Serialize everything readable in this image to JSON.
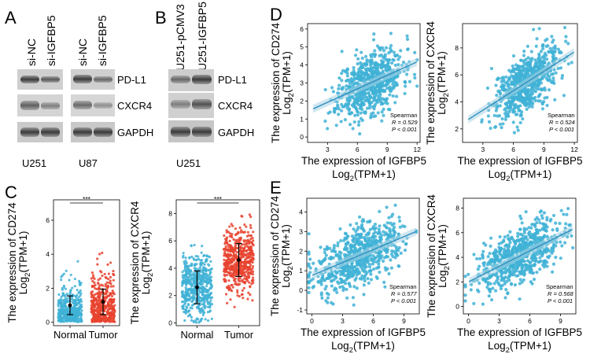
{
  "panels": {
    "A": {
      "label": "A",
      "lanes": [
        "si-NC",
        "si-IGFBP5",
        "si-NC",
        "si-IGFBP5"
      ],
      "bands": [
        "PD-L1",
        "CXCR4",
        "GAPDH"
      ],
      "cells": [
        "U251",
        "U87"
      ]
    },
    "B": {
      "label": "B",
      "lanes": [
        "U251-pCMV3",
        "U251-IGFBP5"
      ],
      "bands": [
        "PD-L1",
        "CXCR4",
        "GAPDH"
      ],
      "cell": "U251"
    },
    "C": {
      "label": "C"
    },
    "D": {
      "label": "D"
    },
    "E": {
      "label": "E"
    }
  },
  "chart_data": [
    {
      "id": "C1",
      "type": "scatter",
      "ylabel_line1": "The expression of CD274",
      "ylabel_line2": "Log2(TPM+1)",
      "categories": [
        "Normal",
        "Tumor"
      ],
      "yticks": [
        "0",
        "2",
        "4",
        "6"
      ],
      "ylim": [
        -0.2,
        7.2
      ],
      "series": [
        {
          "name": "Normal",
          "color": "#3fb2d6",
          "mean": 1.0,
          "sd": 0.55
        },
        {
          "name": "Tumor",
          "color": "#e8432f",
          "mean": 1.2,
          "sd": 0.75
        }
      ],
      "significance": "***"
    },
    {
      "id": "C2",
      "type": "scatter",
      "ylabel_line1": "The expression of CXCR4",
      "ylabel_line2": "Log2(TPM+1)",
      "categories": [
        "Normal",
        "Tumor"
      ],
      "yticks": [
        "0",
        "2",
        "4",
        "6",
        "8"
      ],
      "ylim": [
        -0.2,
        9.0
      ],
      "series": [
        {
          "name": "Normal",
          "color": "#3fb2d6",
          "mean": 2.6,
          "sd": 1.2
        },
        {
          "name": "Tumor",
          "color": "#e8432f",
          "mean": 4.6,
          "sd": 1.2
        }
      ],
      "significance": "***"
    },
    {
      "id": "D1",
      "type": "scatter",
      "ylabel_line1": "The expression of CD274",
      "ylabel_line2": "Log2(TPM+1)",
      "xlabel_line1": "The expression of IGFBP5",
      "xlabel_line2": "Log2(TPM+1)",
      "xticks": [
        "3",
        "6",
        "9",
        "12"
      ],
      "xlim": [
        1.0,
        12.3
      ],
      "yticks": [
        "0",
        "1",
        "2",
        "3",
        "4",
        "5",
        "6"
      ],
      "ylim": [
        -0.3,
        6.3
      ],
      "spearman": "Spearman",
      "r": "R = 0.529",
      "p": "P < 0.001",
      "color": "#3fb2d6"
    },
    {
      "id": "D2",
      "type": "scatter",
      "ylabel_line1": "The expression of CXCR4",
      "ylabel_line2": "Log2(TPM+1)",
      "xlabel_line1": "The expression of IGFBP5",
      "xlabel_line2": "Log2(TPM+1)",
      "xticks": [
        "3",
        "6",
        "9",
        "12"
      ],
      "xlim": [
        1.0,
        12.3
      ],
      "yticks": [
        "2",
        "4",
        "6",
        "8"
      ],
      "ylim": [
        1.0,
        9.8
      ],
      "spearman": "Spearman",
      "r": "R = 0.524",
      "p": "P < 0.001",
      "color": "#3fb2d6"
    },
    {
      "id": "E1",
      "type": "scatter",
      "ylabel_line1": "The expression of CD274",
      "ylabel_line2": "Log2(TPM+1)",
      "xlabel_line1": "The expression of IGFBP5",
      "xlabel_line2": "Log2(TPM+1)",
      "xticks": [
        "0",
        "3",
        "6",
        "9"
      ],
      "xlim": [
        -0.5,
        10.5
      ],
      "yticks": [
        "-1",
        "0",
        "1",
        "2",
        "3",
        "4"
      ],
      "ylim": [
        -1.2,
        4.7
      ],
      "spearman": "Spearman",
      "r": "R = 0.577",
      "p": "P < 0.001",
      "color": "#3fb2d6"
    },
    {
      "id": "E2",
      "type": "scatter",
      "ylabel_line1": "The expression of CXCR4",
      "ylabel_line2": "Log2(TPM+1)",
      "xlabel_line1": "The expression of IGFBP5",
      "xlabel_line2": "Log2(TPM+1)",
      "xticks": [
        "0",
        "3",
        "6",
        "9"
      ],
      "xlim": [
        -0.5,
        10.5
      ],
      "yticks": [
        "0",
        "2",
        "4",
        "6",
        "8"
      ],
      "ylim": [
        -0.6,
        8.8
      ],
      "spearman": "Spearman",
      "r": "R = 0.568",
      "p": "P < 0.001",
      "color": "#3fb2d6"
    }
  ]
}
